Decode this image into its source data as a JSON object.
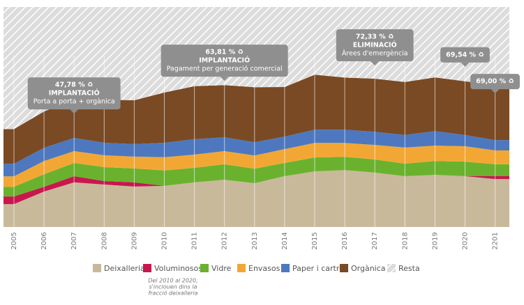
{
  "chart_data": {
    "type": "stacked-area",
    "categories": [
      "2005",
      "2006",
      "2007",
      "2008",
      "2009",
      "2010",
      "2011",
      "2012",
      "2013",
      "2014",
      "2015",
      "2016",
      "2017",
      "2018",
      "2019",
      "2020",
      "2201"
    ],
    "ylim": [
      0,
      100
    ],
    "series": [
      {
        "name": "Deixalleria",
        "color": "#c9b99b",
        "values": [
          10.4,
          16.1,
          20.3,
          19.3,
          18.4,
          18.7,
          20.3,
          21.5,
          19.9,
          23.1,
          25.3,
          25.9,
          24.7,
          23.1,
          23.7,
          23.1,
          21.8
        ]
      },
      {
        "name": "Voluminosos",
        "color": "#c8174f",
        "values": [
          3.5,
          2.2,
          2.8,
          1.6,
          1.9,
          0,
          0,
          0,
          0,
          0,
          0,
          0,
          0,
          0,
          0,
          0,
          1.3
        ]
      },
      {
        "name": "Vidre",
        "color": "#6ab22e",
        "values": [
          4.4,
          5.7,
          6.0,
          6.3,
          6.3,
          7.0,
          6.6,
          7.0,
          6.6,
          6.0,
          6.3,
          6.0,
          6.0,
          5.7,
          6.3,
          6.6,
          5.4
        ]
      },
      {
        "name": "Envasos",
        "color": "#f2a735",
        "values": [
          4.7,
          6.0,
          5.4,
          5.4,
          5.4,
          6.0,
          6.0,
          6.0,
          6.0,
          6.3,
          6.6,
          6.3,
          6.6,
          7.3,
          7.0,
          7.0,
          6.3
        ]
      },
      {
        "name": "Paper i cartró",
        "color": "#4d78c0",
        "values": [
          5.7,
          6.0,
          6.0,
          5.7,
          5.7,
          6.6,
          7.0,
          6.3,
          6.0,
          5.7,
          6.0,
          6.0,
          6.0,
          5.7,
          6.6,
          5.1,
          4.7
        ]
      },
      {
        "name": "Orgànica",
        "color": "#7a4a24",
        "values": [
          15.8,
          16.5,
          17.7,
          19.6,
          19.9,
          22.8,
          24.1,
          23.7,
          25.0,
          22.5,
          25.0,
          23.7,
          24.1,
          24.1,
          24.4,
          24.4,
          25.0
        ]
      },
      {
        "name": "Resta",
        "color": "#dcdcdc",
        "pattern": "hatch",
        "values": [
          55.5,
          47.5,
          41.8,
          42.1,
          42.4,
          38.9,
          36.0,
          35.5,
          36.5,
          36.4,
          30.8,
          32.1,
          32.6,
          34.1,
          32.0,
          33.8,
          35.5
        ]
      }
    ],
    "note": [
      "Del 2010 al 2020,",
      "s'inclouen dins la",
      "fracció deixalleria"
    ],
    "annotations": [
      {
        "x": "2007",
        "value": "47,78 % ♻",
        "title": "IMPLANTACIÓ",
        "text": "Porta a porta + orgànica"
      },
      {
        "x": "2012",
        "value": "63,81 % ♻",
        "title": "IMPLANTACIÓ",
        "text": "Pagament per generació comercial"
      },
      {
        "x": "2017",
        "value": "72,33 % ♻",
        "title": "ELIMINACIÓ",
        "text": "Àrees d'emergència"
      },
      {
        "x": "2020",
        "value": "69,54 % ♻"
      },
      {
        "x": "2201",
        "value": "69,00 % ♻"
      }
    ]
  }
}
